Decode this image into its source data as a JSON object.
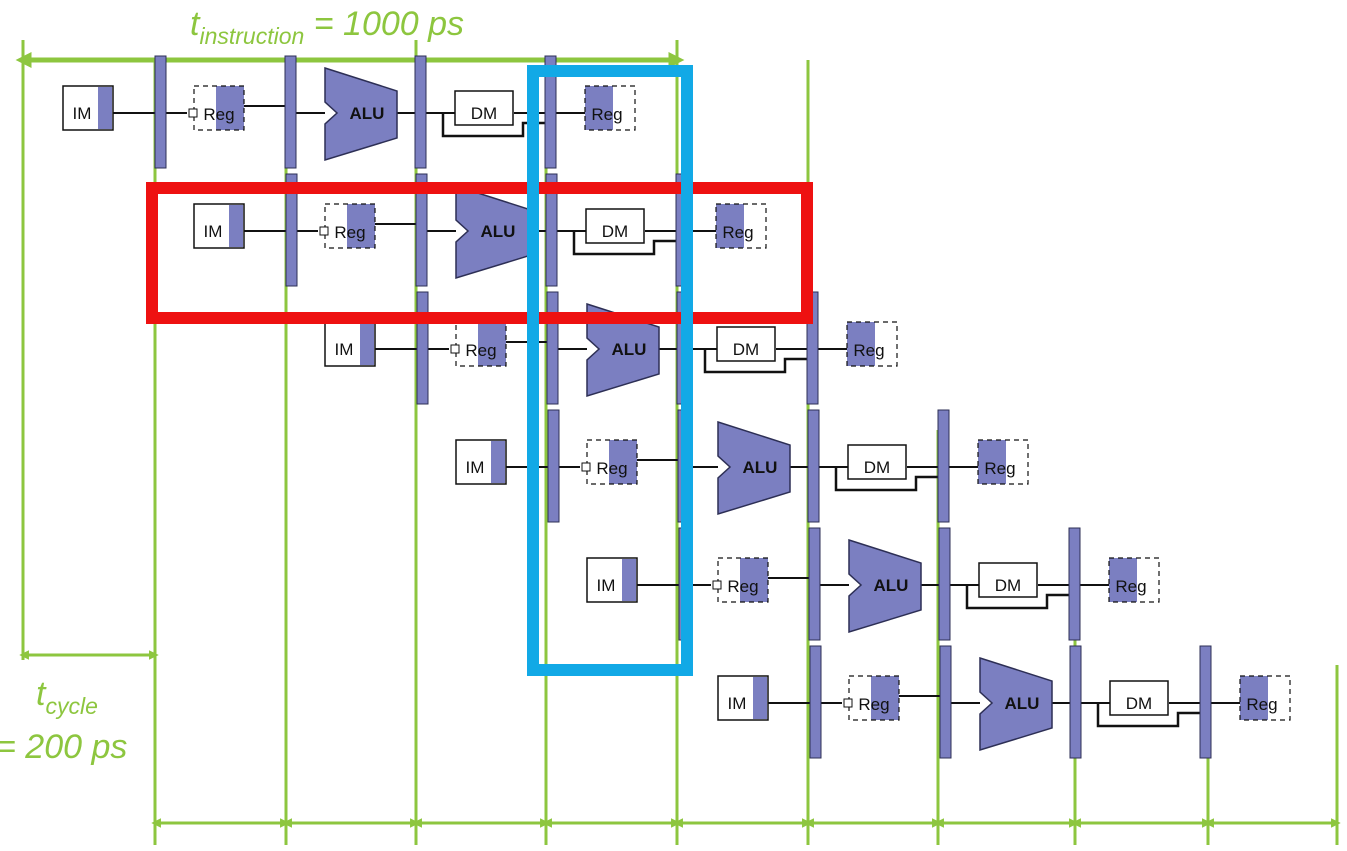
{
  "labels": {
    "t_instruction_main": "t",
    "t_instruction_sub": "instruction",
    "t_instruction_value": " = 1000 ps",
    "t_cycle_main": "t",
    "t_cycle_sub": "cycle",
    "t_cycle_value": "= 200 ps"
  },
  "stage_labels": {
    "im": "IM",
    "reg": "Reg",
    "alu": "ALU",
    "dm": "DM"
  },
  "instruction_count": 6,
  "colors": {
    "timing_lines": "#8dc63f",
    "stage_fill": "#7b7fc1",
    "pipeline_register": "#7b7fc1",
    "highlight_row": "#ee1111",
    "highlight_column": "#12a9e6",
    "wire": "#111111"
  },
  "highlights": {
    "row": "second instruction",
    "column": "fourth clock cycle"
  }
}
